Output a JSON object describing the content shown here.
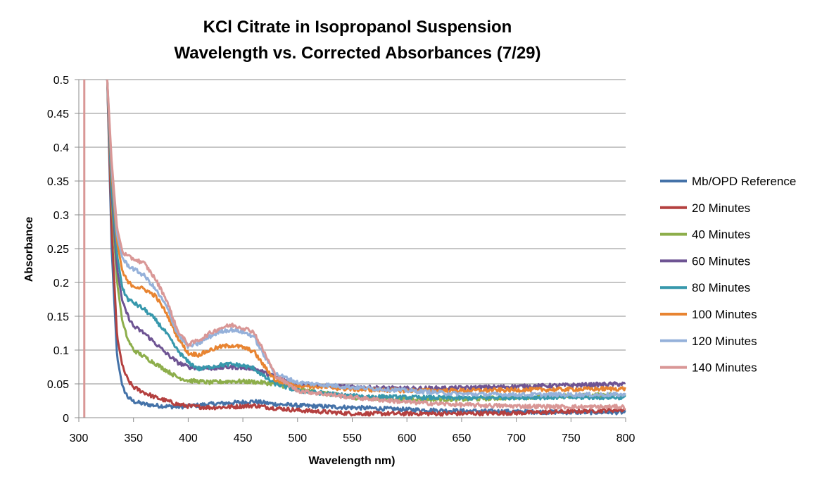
{
  "chart_data": {
    "type": "line",
    "title": [
      "KCl Citrate in Isopropanol Suspension",
      "Wavelength vs. Corrected Absorbances (7/29)"
    ],
    "xlabel": "Wavelength nm)",
    "ylabel": "Absorbance",
    "xlim": [
      300,
      800
    ],
    "ylim": [
      0,
      0.5
    ],
    "xticks": [
      "300",
      "350",
      "400",
      "450",
      "500",
      "550",
      "600",
      "650",
      "700",
      "750",
      "800"
    ],
    "yticks": [
      "0",
      "0.05",
      "0.1",
      "0.15",
      "0.2",
      "0.25",
      "0.3",
      "0.35",
      "0.4",
      "0.45",
      "0.5"
    ],
    "grid": "horizontal",
    "legend_position": "right",
    "series": [
      {
        "name": "Mb/OPD Reference",
        "color": "#4472A8",
        "points": [
          [
            326,
            0.5
          ],
          [
            330,
            0.25
          ],
          [
            335,
            0.09
          ],
          [
            340,
            0.045
          ],
          [
            345,
            0.03
          ],
          [
            350,
            0.024
          ],
          [
            360,
            0.02
          ],
          [
            370,
            0.018
          ],
          [
            380,
            0.017
          ],
          [
            390,
            0.016
          ],
          [
            400,
            0.017
          ],
          [
            420,
            0.02
          ],
          [
            440,
            0.022
          ],
          [
            460,
            0.024
          ],
          [
            480,
            0.02
          ],
          [
            500,
            0.018
          ],
          [
            550,
            0.015
          ],
          [
            600,
            0.012
          ],
          [
            650,
            0.01
          ],
          [
            700,
            0.009
          ],
          [
            750,
            0.008
          ],
          [
            800,
            0.008
          ]
        ]
      },
      {
        "name": "20 Minutes",
        "color": "#B4403F",
        "points": [
          [
            326,
            0.5
          ],
          [
            330,
            0.28
          ],
          [
            335,
            0.12
          ],
          [
            340,
            0.075
          ],
          [
            345,
            0.055
          ],
          [
            350,
            0.045
          ],
          [
            360,
            0.037
          ],
          [
            370,
            0.03
          ],
          [
            380,
            0.025
          ],
          [
            390,
            0.02
          ],
          [
            400,
            0.017
          ],
          [
            420,
            0.015
          ],
          [
            440,
            0.016
          ],
          [
            460,
            0.018
          ],
          [
            480,
            0.014
          ],
          [
            500,
            0.011
          ],
          [
            550,
            0.006
          ],
          [
            600,
            0.006
          ],
          [
            650,
            0.006
          ],
          [
            700,
            0.007
          ],
          [
            750,
            0.009
          ],
          [
            800,
            0.012
          ]
        ]
      },
      {
        "name": "40 Minutes",
        "color": "#8DAE4B",
        "points": [
          [
            326,
            0.5
          ],
          [
            330,
            0.32
          ],
          [
            335,
            0.2
          ],
          [
            340,
            0.14
          ],
          [
            345,
            0.115
          ],
          [
            350,
            0.1
          ],
          [
            360,
            0.09
          ],
          [
            370,
            0.08
          ],
          [
            380,
            0.07
          ],
          [
            390,
            0.06
          ],
          [
            400,
            0.055
          ],
          [
            420,
            0.052
          ],
          [
            440,
            0.054
          ],
          [
            460,
            0.053
          ],
          [
            480,
            0.05
          ],
          [
            500,
            0.042
          ],
          [
            550,
            0.03
          ],
          [
            600,
            0.028
          ],
          [
            650,
            0.027
          ],
          [
            700,
            0.03
          ],
          [
            750,
            0.032
          ],
          [
            800,
            0.035
          ]
        ]
      },
      {
        "name": "60 Minutes",
        "color": "#6E5493",
        "points": [
          [
            326,
            0.5
          ],
          [
            330,
            0.33
          ],
          [
            335,
            0.22
          ],
          [
            340,
            0.17
          ],
          [
            345,
            0.15
          ],
          [
            350,
            0.135
          ],
          [
            360,
            0.125
          ],
          [
            370,
            0.11
          ],
          [
            380,
            0.095
          ],
          [
            390,
            0.082
          ],
          [
            400,
            0.075
          ],
          [
            420,
            0.073
          ],
          [
            440,
            0.075
          ],
          [
            460,
            0.073
          ],
          [
            480,
            0.06
          ],
          [
            500,
            0.05
          ],
          [
            550,
            0.045
          ],
          [
            600,
            0.043
          ],
          [
            650,
            0.044
          ],
          [
            700,
            0.046
          ],
          [
            750,
            0.048
          ],
          [
            800,
            0.05
          ]
        ]
      },
      {
        "name": "80 Minutes",
        "color": "#3798AC",
        "points": [
          [
            326,
            0.5
          ],
          [
            330,
            0.34
          ],
          [
            335,
            0.24
          ],
          [
            340,
            0.19
          ],
          [
            345,
            0.175
          ],
          [
            350,
            0.17
          ],
          [
            360,
            0.16
          ],
          [
            370,
            0.145
          ],
          [
            380,
            0.125
          ],
          [
            390,
            0.1
          ],
          [
            400,
            0.082
          ],
          [
            410,
            0.072
          ],
          [
            420,
            0.075
          ],
          [
            430,
            0.078
          ],
          [
            440,
            0.079
          ],
          [
            450,
            0.077
          ],
          [
            460,
            0.073
          ],
          [
            470,
            0.06
          ],
          [
            480,
            0.05
          ],
          [
            500,
            0.04
          ],
          [
            550,
            0.032
          ],
          [
            600,
            0.03
          ],
          [
            650,
            0.029
          ],
          [
            700,
            0.03
          ],
          [
            750,
            0.03
          ],
          [
            800,
            0.03
          ]
        ]
      },
      {
        "name": "100 Minutes",
        "color": "#E88431",
        "points": [
          [
            326,
            0.5
          ],
          [
            330,
            0.36
          ],
          [
            335,
            0.26
          ],
          [
            340,
            0.215
          ],
          [
            345,
            0.2
          ],
          [
            350,
            0.195
          ],
          [
            360,
            0.19
          ],
          [
            370,
            0.18
          ],
          [
            380,
            0.155
          ],
          [
            390,
            0.12
          ],
          [
            400,
            0.095
          ],
          [
            410,
            0.093
          ],
          [
            420,
            0.1
          ],
          [
            430,
            0.105
          ],
          [
            440,
            0.107
          ],
          [
            450,
            0.104
          ],
          [
            460,
            0.098
          ],
          [
            470,
            0.075
          ],
          [
            480,
            0.055
          ],
          [
            500,
            0.048
          ],
          [
            550,
            0.042
          ],
          [
            600,
            0.04
          ],
          [
            650,
            0.04
          ],
          [
            700,
            0.041
          ],
          [
            750,
            0.042
          ],
          [
            800,
            0.043
          ]
        ]
      },
      {
        "name": "120 Minutes",
        "color": "#95B1DA",
        "points": [
          [
            326,
            0.5
          ],
          [
            330,
            0.37
          ],
          [
            335,
            0.27
          ],
          [
            340,
            0.235
          ],
          [
            345,
            0.225
          ],
          [
            350,
            0.22
          ],
          [
            360,
            0.21
          ],
          [
            370,
            0.19
          ],
          [
            380,
            0.165
          ],
          [
            390,
            0.125
          ],
          [
            400,
            0.105
          ],
          [
            410,
            0.11
          ],
          [
            420,
            0.12
          ],
          [
            430,
            0.128
          ],
          [
            440,
            0.13
          ],
          [
            450,
            0.127
          ],
          [
            460,
            0.12
          ],
          [
            470,
            0.09
          ],
          [
            480,
            0.065
          ],
          [
            500,
            0.052
          ],
          [
            550,
            0.045
          ],
          [
            600,
            0.04
          ],
          [
            650,
            0.035
          ],
          [
            700,
            0.034
          ],
          [
            750,
            0.034
          ],
          [
            800,
            0.034
          ]
        ]
      },
      {
        "name": "140 Minutes",
        "color": "#D99796",
        "points": [
          [
            326,
            0.5
          ],
          [
            330,
            0.38
          ],
          [
            335,
            0.28
          ],
          [
            340,
            0.245
          ],
          [
            345,
            0.238
          ],
          [
            350,
            0.235
          ],
          [
            360,
            0.228
          ],
          [
            370,
            0.205
          ],
          [
            380,
            0.175
          ],
          [
            390,
            0.13
          ],
          [
            400,
            0.108
          ],
          [
            410,
            0.115
          ],
          [
            420,
            0.125
          ],
          [
            430,
            0.133
          ],
          [
            440,
            0.137
          ],
          [
            450,
            0.133
          ],
          [
            460,
            0.127
          ],
          [
            470,
            0.095
          ],
          [
            480,
            0.062
          ],
          [
            500,
            0.04
          ],
          [
            550,
            0.03
          ],
          [
            600,
            0.023
          ],
          [
            650,
            0.019
          ],
          [
            700,
            0.017
          ],
          [
            750,
            0.016
          ],
          [
            800,
            0.016
          ]
        ]
      }
    ]
  }
}
